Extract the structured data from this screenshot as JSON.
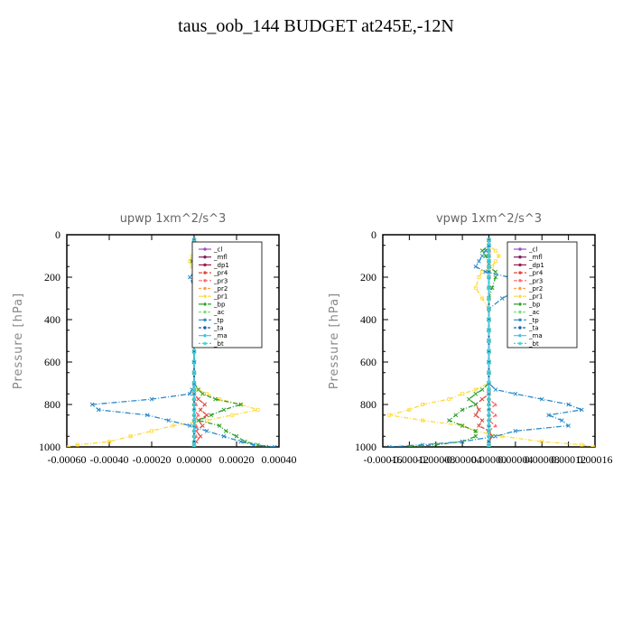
{
  "figure_title": "taus_oob_144  BUDGET at245E,-12N",
  "chart_data": [
    {
      "type": "line",
      "title": "upwp   1xm^2/s^3",
      "xlabel": "",
      "ylabel": "Pressure [hPa]",
      "xlim": [
        -0.0006,
        0.0004
      ],
      "ylim": [
        1000,
        0
      ],
      "xticks": [
        -0.0006,
        -0.0004,
        -0.0002,
        0.0,
        0.0002,
        0.0004
      ],
      "xtick_labels": [
        "-0.00060",
        "-0.00040",
        "-0.00020",
        "0.00000",
        "0.00020",
        "0.00040"
      ],
      "yticks": [
        0,
        200,
        400,
        600,
        800,
        1000
      ],
      "ytick_labels": [
        "0",
        "200",
        "400",
        "600",
        "800",
        "1000"
      ],
      "legend_position": "upper-right inside",
      "y": [
        25,
        50,
        75,
        100,
        125,
        150,
        175,
        200,
        250,
        300,
        350,
        400,
        450,
        500,
        550,
        600,
        650,
        700,
        730,
        750,
        775,
        800,
        825,
        850,
        875,
        900,
        925,
        950,
        975,
        990,
        1000
      ],
      "series": [
        {
          "name": "_cl",
          "color": "#9a4fc9",
          "values": [
            0,
            0,
            0,
            0,
            0,
            0,
            0,
            0,
            0,
            0,
            0,
            0,
            0,
            0,
            0,
            0,
            0,
            0,
            0,
            0,
            0,
            0,
            0,
            0,
            0,
            0,
            0,
            0,
            0,
            0,
            0
          ]
        },
        {
          "name": "_mfl",
          "color": "#7a1f5c",
          "values": [
            0,
            0,
            0,
            0,
            0,
            0,
            0,
            0,
            0,
            0,
            0,
            0,
            0,
            0,
            0,
            0,
            0,
            0,
            0,
            0,
            0,
            0,
            0,
            0,
            0,
            0,
            0,
            0,
            0,
            0,
            0
          ]
        },
        {
          "name": "_dp1",
          "color": "#9b1b4e",
          "values": [
            0,
            0,
            0,
            0,
            0,
            0,
            0,
            0,
            0,
            0,
            0,
            0,
            0,
            0,
            0,
            0,
            0,
            0,
            0,
            0,
            0,
            0,
            0,
            0,
            0,
            0,
            0,
            0,
            0,
            0,
            0
          ]
        },
        {
          "name": "_pr4",
          "color": "#e0453a",
          "values": [
            0,
            0,
            0,
            0,
            0,
            0,
            0,
            0,
            0,
            0,
            0,
            0,
            0,
            0,
            0,
            0,
            0,
            0,
            0,
            0,
            2e-05,
            5e-05,
            3e-05,
            6e-05,
            2e-05,
            4e-05,
            1e-05,
            3e-05,
            1e-05,
            0,
            0
          ]
        },
        {
          "name": "_pr3",
          "color": "#ff6a6a",
          "values": [
            0,
            0,
            0,
            0,
            0,
            0,
            0,
            0,
            0,
            0,
            0,
            0,
            0,
            0,
            0,
            0,
            0,
            0,
            0,
            0,
            0,
            1e-05,
            0,
            2e-05,
            0,
            1e-05,
            0,
            1e-05,
            0,
            0,
            0
          ]
        },
        {
          "name": "_pr2",
          "color": "#ffa040",
          "values": [
            0,
            0,
            0,
            0,
            0,
            0,
            0,
            0,
            0,
            0,
            0,
            0,
            0,
            0,
            0,
            0,
            0,
            0,
            0,
            0,
            0,
            0,
            0,
            0,
            0,
            0,
            0,
            0,
            0,
            0,
            0
          ]
        },
        {
          "name": "_pr1",
          "color": "#ffd93b",
          "values": [
            0,
            0,
            0,
            -1e-05,
            -2e-05,
            -1e-05,
            0,
            0,
            0,
            0,
            0,
            0,
            0,
            0,
            0,
            0,
            0,
            0,
            2e-05,
            6e-05,
            0.00012,
            0.00022,
            0.0003,
            0.00018,
            6e-05,
            -0.0001,
            -0.0002,
            -0.0003,
            -0.0004,
            -0.00055,
            -0.0006
          ]
        },
        {
          "name": "_bp",
          "color": "#2aa02a",
          "values": [
            0,
            0,
            0,
            0,
            -1e-05,
            0,
            0,
            0,
            0,
            0,
            0,
            0,
            0,
            0,
            0,
            0,
            0,
            0,
            2e-05,
            4e-05,
            0.0001,
            0.00022,
            0.00014,
            8e-05,
            2e-05,
            0.00012,
            0.00015,
            0.0002,
            0.00024,
            0.0003,
            0.00034
          ]
        },
        {
          "name": "_ac",
          "color": "#7ce07c",
          "values": [
            0,
            0,
            0,
            0,
            0,
            0,
            0,
            0,
            0,
            0,
            0,
            0,
            0,
            0,
            0,
            0,
            0,
            0,
            0,
            0,
            0,
            0,
            0,
            0,
            0,
            0,
            0,
            0,
            0,
            0,
            0
          ]
        },
        {
          "name": "_tp",
          "color": "#2a8bc9",
          "values": [
            0,
            0,
            2e-05,
            4e-05,
            5e-05,
            2e-05,
            0,
            -2e-05,
            0,
            0,
            0,
            0,
            0,
            0,
            0,
            0,
            0,
            0,
            -1e-05,
            -2e-05,
            -0.0002,
            -0.00048,
            -0.00045,
            -0.00022,
            -0.00012,
            -2e-05,
            6e-05,
            0.00014,
            0.00022,
            0.00028,
            0.00038
          ]
        },
        {
          "name": "_ta",
          "color": "#1b5fb0",
          "values": [
            0,
            0,
            0,
            0,
            0,
            0,
            0,
            0,
            0,
            0,
            0,
            0,
            0,
            0,
            0,
            0,
            0,
            0,
            0,
            0,
            0,
            0,
            0,
            0,
            0,
            0,
            0,
            0,
            0,
            0,
            0
          ]
        },
        {
          "name": "_ma",
          "color": "#3ec3e6",
          "values": [
            0,
            0,
            0,
            0,
            0,
            0,
            0,
            0,
            0,
            0,
            0,
            0,
            0,
            0,
            0,
            0,
            0,
            0,
            0,
            0,
            0,
            0,
            0,
            0,
            0,
            0,
            0,
            0,
            0,
            0,
            0
          ]
        },
        {
          "name": "_bt",
          "color": "#43d6d6",
          "values": [
            0,
            0,
            0,
            0,
            0,
            0,
            0,
            0,
            0,
            0,
            0,
            0,
            0,
            0,
            0,
            0,
            0,
            0,
            0,
            0,
            0,
            0,
            0,
            0,
            0,
            0,
            0,
            0,
            0,
            0,
            0
          ]
        }
      ]
    },
    {
      "type": "line",
      "title": "vpwp   1xm^2/s^3",
      "xlabel": "",
      "ylabel": "Pressure [hPa]",
      "xlim": [
        -0.00016,
        0.00016
      ],
      "ylim": [
        1000,
        0
      ],
      "xticks": [
        -0.00016,
        -0.00012,
        -8e-05,
        -4e-05,
        0.0,
        4e-05,
        8e-05,
        0.00012,
        0.00016
      ],
      "xtick_labels": [
        "-0.00016",
        "-0.00012",
        "-0.00008",
        "-0.00004",
        "0.00000",
        "0.00004",
        "0.00008",
        "0.00012",
        "0.00016"
      ],
      "yticks": [
        0,
        200,
        400,
        600,
        800,
        1000
      ],
      "ytick_labels": [
        "0",
        "200",
        "400",
        "600",
        "800",
        "1000"
      ],
      "legend_position": "upper-right inside",
      "y": [
        25,
        50,
        75,
        100,
        125,
        150,
        175,
        200,
        250,
        300,
        350,
        400,
        450,
        500,
        550,
        600,
        650,
        700,
        730,
        750,
        775,
        800,
        825,
        850,
        875,
        900,
        925,
        950,
        975,
        990,
        1000
      ],
      "series": [
        {
          "name": "_cl",
          "color": "#9a4fc9",
          "values": [
            0,
            0,
            0,
            0,
            0,
            0,
            0,
            0,
            0,
            0,
            0,
            0,
            0,
            0,
            0,
            0,
            0,
            0,
            0,
            0,
            0,
            0,
            0,
            0,
            0,
            0,
            0,
            0,
            0,
            0,
            0
          ]
        },
        {
          "name": "_mfl",
          "color": "#7a1f5c",
          "values": [
            0,
            0,
            0,
            0,
            0,
            0,
            0,
            0,
            0,
            0,
            0,
            0,
            0,
            0,
            0,
            0,
            0,
            0,
            0,
            0,
            0,
            0,
            0,
            0,
            0,
            0,
            0,
            0,
            0,
            0,
            0
          ]
        },
        {
          "name": "_dp1",
          "color": "#9b1b4e",
          "values": [
            0,
            0,
            0,
            0,
            0,
            0,
            0,
            0,
            0,
            0,
            0,
            0,
            0,
            0,
            0,
            0,
            0,
            0,
            0,
            0,
            0,
            0,
            0,
            0,
            0,
            0,
            0,
            0,
            0,
            0,
            0
          ]
        },
        {
          "name": "_pr4",
          "color": "#e0453a",
          "values": [
            0,
            0,
            0,
            0,
            0,
            0,
            0,
            0,
            0,
            0,
            0,
            0,
            0,
            0,
            0,
            0,
            0,
            0,
            0,
            0,
            -1e-05,
            -2e-05,
            -1.5e-05,
            -2e-05,
            -1e-05,
            -1.5e-05,
            0,
            5e-06,
            0,
            0,
            0
          ]
        },
        {
          "name": "_pr3",
          "color": "#ff6a6a",
          "values": [
            0,
            0,
            0,
            0,
            0,
            0,
            0,
            0,
            0,
            0,
            0,
            0,
            0,
            0,
            0,
            0,
            0,
            0,
            0,
            0,
            0,
            1e-05,
            0,
            1e-05,
            0,
            1e-05,
            0,
            0,
            0,
            0,
            0
          ]
        },
        {
          "name": "_pr2",
          "color": "#ffa040",
          "values": [
            0,
            0,
            0,
            0,
            0,
            0,
            0,
            0,
            0,
            0,
            0,
            0,
            0,
            0,
            0,
            0,
            0,
            0,
            0,
            0,
            0,
            0,
            0,
            0,
            0,
            0,
            0,
            0,
            0,
            0,
            0
          ]
        },
        {
          "name": "_pr1",
          "color": "#ffd93b",
          "values": [
            0,
            0,
            1e-05,
            1.5e-05,
            1e-05,
            5e-06,
            -1e-05,
            -1.5e-05,
            -2e-05,
            -1e-05,
            0,
            0,
            0,
            0,
            0,
            0,
            0,
            0,
            -2e-05,
            -4e-05,
            -6e-05,
            -0.0001,
            -0.00012,
            -0.00015,
            -0.0001,
            -4e-05,
            -2e-05,
            2e-05,
            8e-05,
            0.00014,
            0.00016
          ]
        },
        {
          "name": "_bp",
          "color": "#2aa02a",
          "values": [
            0,
            0,
            -1e-05,
            -5e-06,
            0,
            0,
            1e-05,
            1e-05,
            5e-06,
            0,
            0,
            0,
            0,
            0,
            0,
            0,
            0,
            0,
            -1e-05,
            -2e-05,
            -3e-05,
            -2e-05,
            -4e-05,
            -5e-05,
            -6e-05,
            -4e-05,
            -2e-05,
            -2e-05,
            -4e-05,
            -8e-05,
            -0.00012
          ]
        },
        {
          "name": "_ac",
          "color": "#7ce07c",
          "values": [
            0,
            0,
            0,
            0,
            0,
            0,
            0,
            0,
            0,
            0,
            0,
            0,
            0,
            0,
            0,
            0,
            0,
            0,
            0,
            0,
            0,
            0,
            0,
            0,
            0,
            0,
            0,
            0,
            0,
            0,
            0
          ]
        },
        {
          "name": "_tp",
          "color": "#2a8bc9",
          "values": [
            0,
            0,
            -5e-06,
            -1e-05,
            -1.5e-05,
            -2e-05,
            -5e-06,
            3e-05,
            5e-05,
            2e-05,
            0,
            0,
            0,
            0,
            0,
            0,
            0,
            0,
            1e-05,
            4e-05,
            8e-05,
            0.00012,
            0.00014,
            9e-05,
            0.00011,
            0.00012,
            4e-05,
            1e-05,
            -4e-05,
            -0.0001,
            -0.00015
          ]
        },
        {
          "name": "_ta",
          "color": "#1b5fb0",
          "values": [
            0,
            0,
            0,
            0,
            0,
            0,
            0,
            0,
            0,
            0,
            0,
            0,
            0,
            0,
            0,
            0,
            0,
            0,
            0,
            0,
            0,
            0,
            0,
            0,
            0,
            0,
            0,
            0,
            0,
            0,
            0
          ]
        },
        {
          "name": "_ma",
          "color": "#3ec3e6",
          "values": [
            0,
            0,
            0,
            0,
            0,
            0,
            0,
            0,
            0,
            0,
            0,
            0,
            0,
            0,
            0,
            0,
            0,
            0,
            0,
            0,
            0,
            0,
            0,
            0,
            0,
            0,
            0,
            0,
            0,
            0,
            0
          ]
        },
        {
          "name": "_bt",
          "color": "#43d6d6",
          "values": [
            0,
            0,
            0,
            0,
            0,
            0,
            0,
            0,
            0,
            0,
            0,
            0,
            0,
            0,
            0,
            0,
            0,
            0,
            0,
            0,
            0,
            0,
            0,
            0,
            0,
            0,
            0,
            0,
            0,
            0,
            0
          ]
        }
      ]
    }
  ]
}
